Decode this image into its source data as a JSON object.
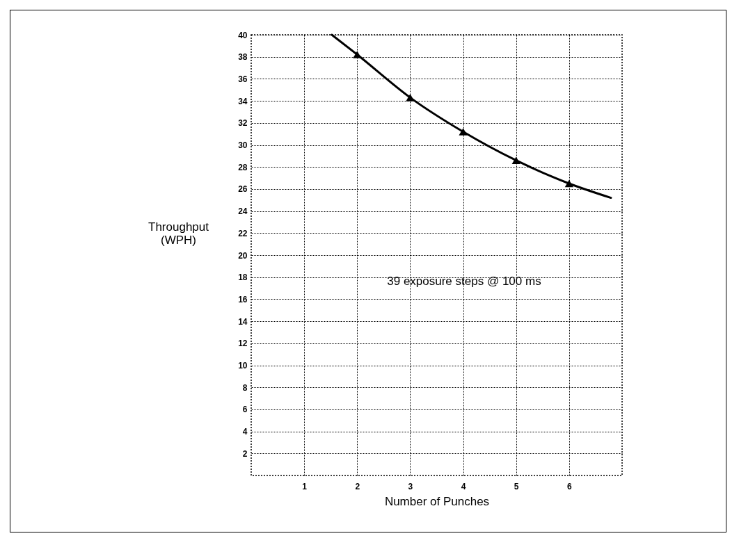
{
  "chart_data": {
    "type": "line",
    "xlabel": "Number of Punches",
    "ylabel": "Throughput (WPH)",
    "annotations": [
      "39 exposure steps @ 100 ms"
    ],
    "series": [
      {
        "type": "line",
        "marker": "none",
        "color": "#000000",
        "x": [
          1.52,
          2,
          3,
          4,
          5,
          6,
          6.79
        ],
        "values": [
          40,
          38.2,
          34.3,
          31.2,
          28.6,
          26.5,
          25.2
        ]
      },
      {
        "type": "scatter",
        "marker": "triangle",
        "color": "#000000",
        "x": [
          2,
          3,
          4,
          5,
          6
        ],
        "values": [
          38.2,
          34.3,
          31.2,
          28.6,
          26.5
        ]
      }
    ],
    "xlim": [
      0,
      7
    ],
    "xticks": [
      1,
      2,
      3,
      4,
      5,
      6
    ],
    "ylim": [
      0,
      40
    ],
    "yticks": [
      2,
      4,
      6,
      8,
      10,
      12,
      14,
      16,
      18,
      20,
      22,
      24,
      26,
      28,
      30,
      32,
      34,
      36,
      38,
      40
    ],
    "grid": true,
    "line_style": "solid"
  }
}
